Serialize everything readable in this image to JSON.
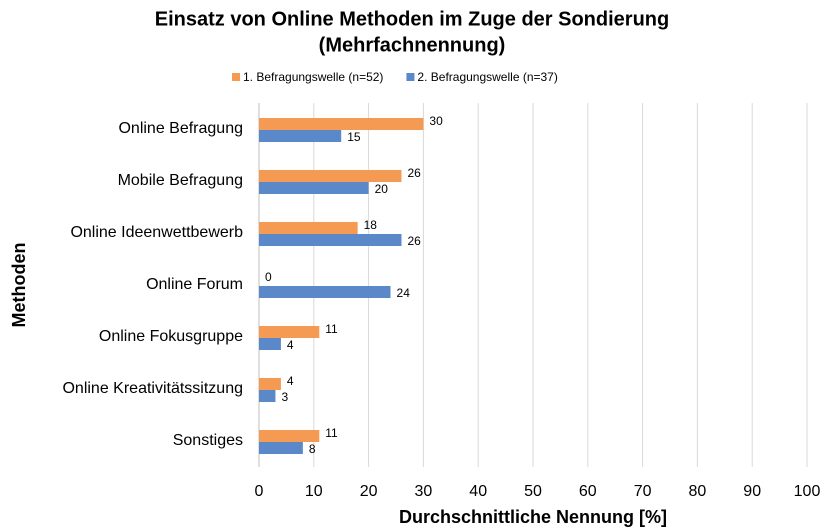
{
  "chart_data": {
    "type": "hbar",
    "title": [
      "Einsatz von Online Methoden im Zuge der Sondierung",
      "(Mehrfachnennung)"
    ],
    "x_label": "Durchschnittliche Nennung [%]",
    "y_label": "Methoden",
    "categories": [
      "Online Befragung",
      "Mobile Befragung",
      "Online Ideenwettbewerb",
      "Online Forum",
      "Online Fokusgruppe",
      "Online Kreativitätssitzung",
      "Sonstiges"
    ],
    "series": [
      {
        "name": "1. Befragungswelle (n=52)",
        "color": "#f59a52",
        "values": [
          30,
          26,
          18,
          0,
          11,
          4,
          11
        ]
      },
      {
        "name": "2. Befragungswelle (n=37)",
        "color": "#5a88c8",
        "values": [
          15,
          20,
          26,
          24,
          4,
          3,
          8
        ]
      }
    ],
    "xlim": [
      0,
      100
    ],
    "xticks": [
      0,
      10,
      20,
      30,
      40,
      50,
      60,
      70,
      80,
      90,
      100
    ],
    "grid": true,
    "legend": "top"
  }
}
